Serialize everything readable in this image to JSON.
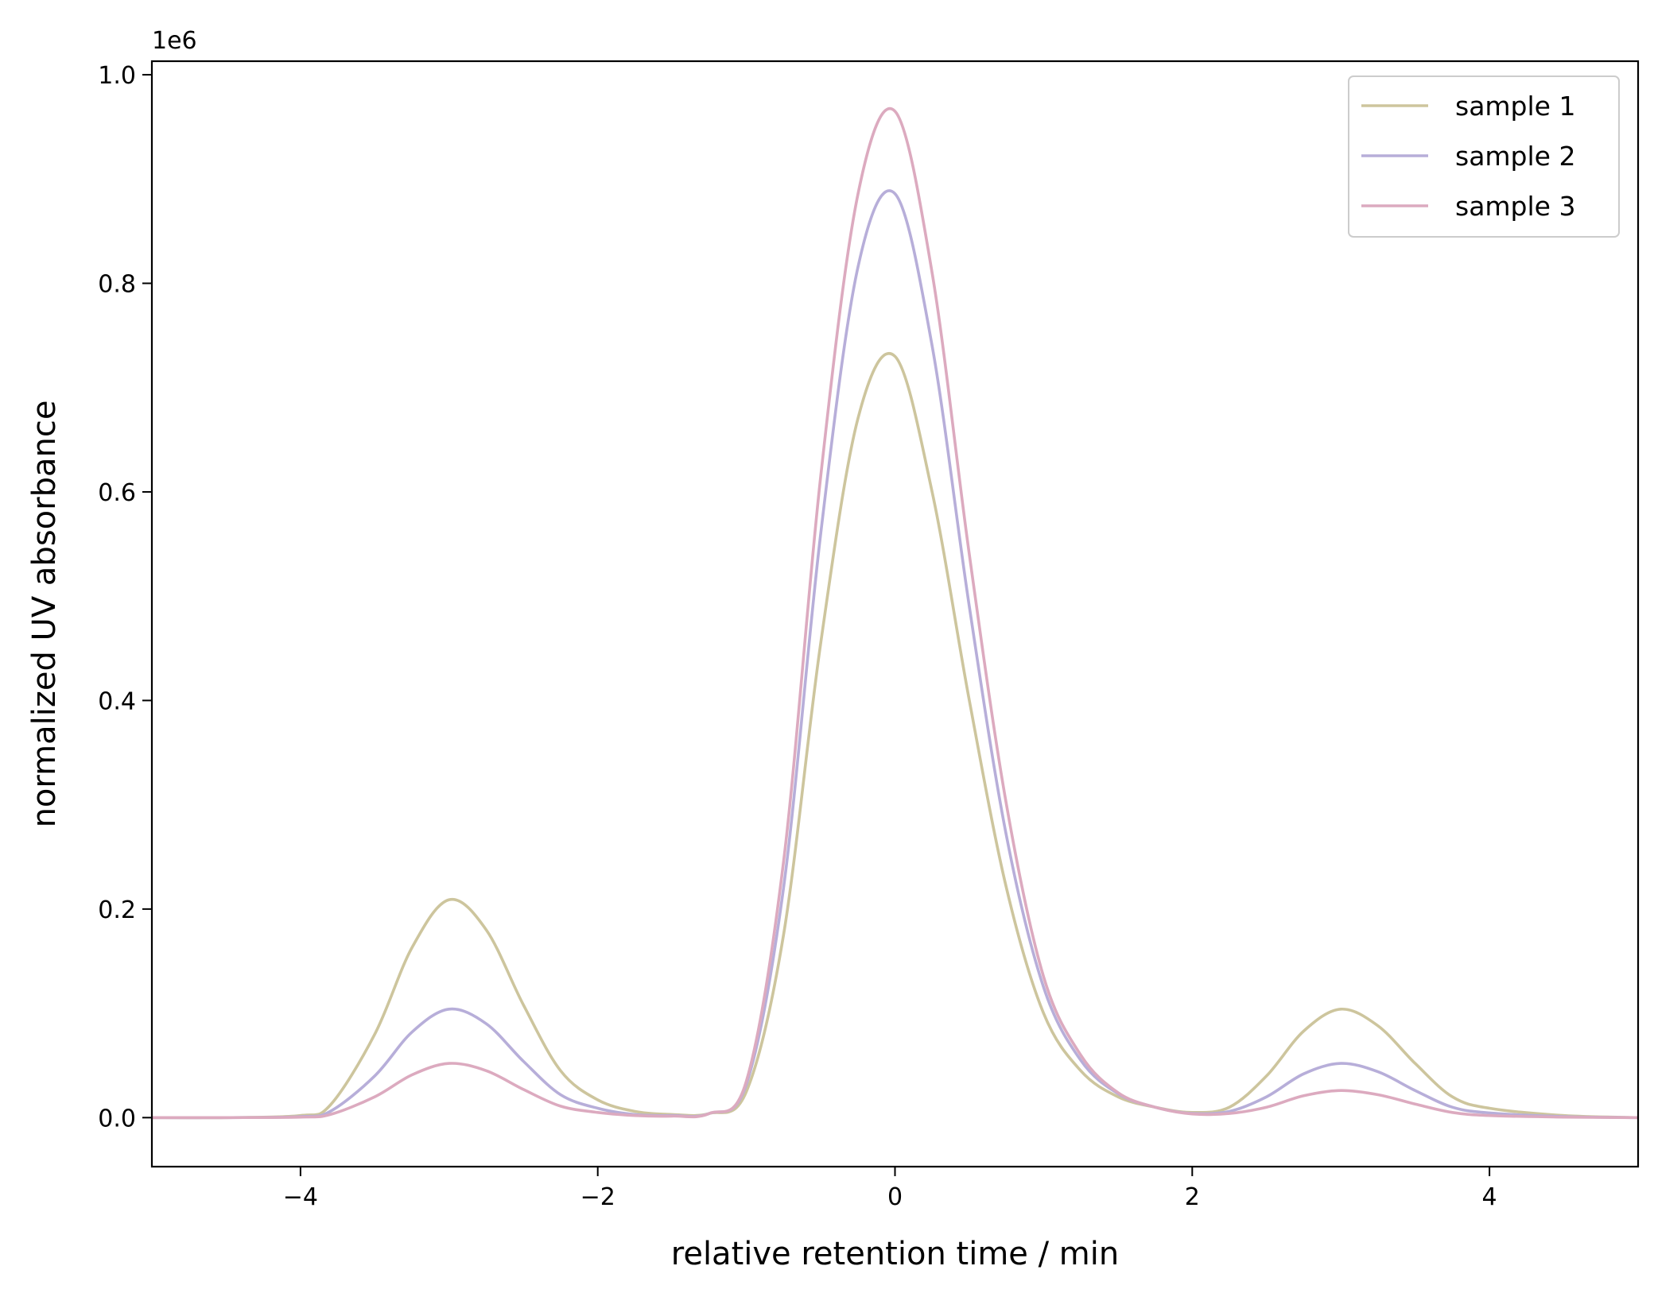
{
  "chart_data": {
    "type": "line",
    "xlabel": "relative retention time / min",
    "ylabel": "normalized UV absorbance",
    "y_offset_label": "1e6",
    "xlim": [
      -5,
      5
    ],
    "ylim": [
      -0.047,
      1.013
    ],
    "y_scale": 1000000,
    "x_ticks": [
      -4,
      -2,
      0,
      2,
      4
    ],
    "x_tick_labels": [
      "−4",
      "−2",
      "0",
      "2",
      "4"
    ],
    "y_ticks": [
      0.0,
      0.2,
      0.4,
      0.6,
      0.8,
      1.0
    ],
    "y_tick_labels": [
      "0.0",
      "0.2",
      "0.4",
      "0.6",
      "0.8",
      "1.0"
    ],
    "grid": false,
    "legend_position": "top-right",
    "series": [
      {
        "name": "sample 1",
        "color": "#cdc59d",
        "x": [
          -5.0,
          -4.5,
          -4.0,
          -3.8,
          -3.5,
          -3.25,
          -3.0,
          -2.75,
          -2.5,
          -2.25,
          -2.0,
          -1.75,
          -1.5,
          -1.25,
          -1.0,
          -0.75,
          -0.5,
          -0.25,
          0.0,
          0.25,
          0.5,
          0.75,
          1.0,
          1.25,
          1.5,
          1.75,
          2.0,
          2.25,
          2.5,
          2.75,
          3.0,
          3.25,
          3.5,
          3.75,
          4.0,
          4.5,
          5.0
        ],
        "y": [
          0,
          0,
          2000,
          12000,
          80000,
          163000,
          209000,
          180000,
          108000,
          45000,
          17000,
          6000,
          3000,
          4000,
          25000,
          175000,
          455000,
          670000,
          730000,
          600000,
          400000,
          220000,
          100000,
          45000,
          20000,
          10000,
          5000,
          10000,
          40000,
          83000,
          104000,
          88000,
          52000,
          20000,
          9000,
          2000,
          0
        ]
      },
      {
        "name": "sample 2",
        "color": "#b7aed9",
        "x": [
          -5.0,
          -4.5,
          -4.0,
          -3.8,
          -3.5,
          -3.25,
          -3.0,
          -2.75,
          -2.5,
          -2.25,
          -2.0,
          -1.75,
          -1.5,
          -1.25,
          -1.0,
          -0.75,
          -0.5,
          -0.25,
          0.0,
          0.25,
          0.5,
          0.75,
          1.0,
          1.25,
          1.5,
          1.75,
          2.0,
          2.25,
          2.5,
          2.75,
          3.0,
          3.25,
          3.5,
          3.75,
          4.0,
          4.5,
          5.0
        ],
        "y": [
          0,
          0,
          1000,
          6000,
          40000,
          82000,
          104000,
          90000,
          54000,
          22000,
          9000,
          3000,
          2000,
          4000,
          32000,
          220000,
          560000,
          815000,
          886000,
          740000,
          490000,
          270000,
          125000,
          55000,
          23000,
          10000,
          4000,
          6000,
          20000,
          42000,
          52000,
          44000,
          26000,
          10000,
          4500,
          1000,
          0
        ]
      },
      {
        "name": "sample 3",
        "color": "#dcaabf",
        "x": [
          -5.0,
          -4.5,
          -4.0,
          -3.8,
          -3.5,
          -3.25,
          -3.0,
          -2.75,
          -2.5,
          -2.25,
          -2.0,
          -1.75,
          -1.5,
          -1.25,
          -1.0,
          -0.75,
          -0.5,
          -0.25,
          0.0,
          0.25,
          0.5,
          0.75,
          1.0,
          1.25,
          1.5,
          1.75,
          2.0,
          2.25,
          2.5,
          2.75,
          3.0,
          3.25,
          3.5,
          3.75,
          4.0,
          4.5,
          5.0
        ],
        "y": [
          0,
          0,
          500,
          3000,
          20000,
          41000,
          52000,
          45000,
          27000,
          11000,
          5000,
          2000,
          1500,
          4000,
          35000,
          245000,
          615000,
          885000,
          965000,
          810000,
          540000,
          300000,
          135000,
          60000,
          24000,
          10000,
          3500,
          4000,
          10000,
          21000,
          26000,
          22000,
          13000,
          5000,
          2000,
          500,
          0
        ]
      }
    ]
  }
}
